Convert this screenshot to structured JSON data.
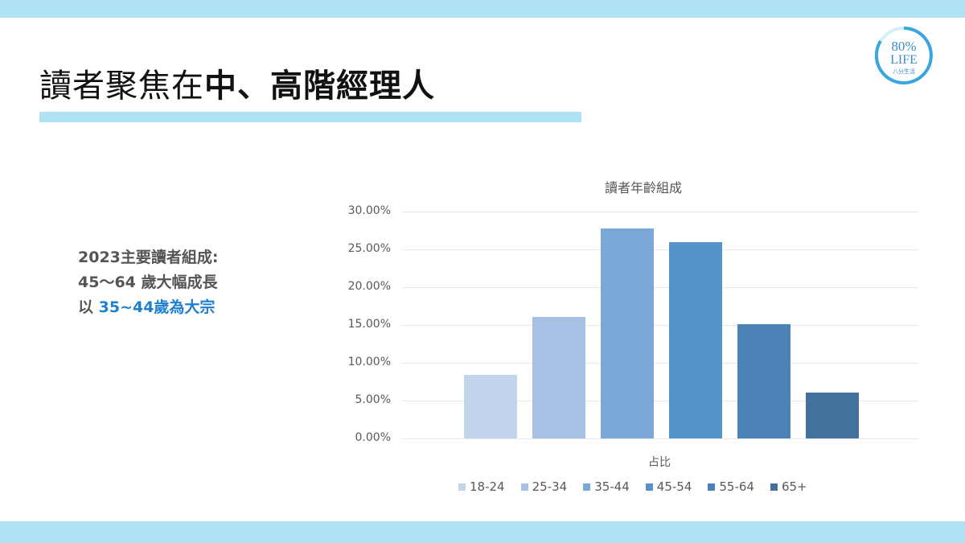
{
  "slide": {
    "title_regular": "讀者聚焦在",
    "title_bold": "中、高階經理人",
    "logo": {
      "line1": "80%",
      "line2": "LIFE",
      "line3": "八分生活",
      "ring_color": "#3aa6dd"
    },
    "summary": {
      "line1": "2023主要讀者組成:",
      "line2": "45～64 歲大幅成長",
      "line3_prefix": "以 ",
      "line3_highlight": "35~44歲為大宗",
      "highlight_color": "#1f7fcf"
    },
    "band_color": "#b1e2f3"
  },
  "chart_data": {
    "type": "bar",
    "title": "讀者年齡組成",
    "xlabel": "占比",
    "ylabel": "",
    "categories": [
      "18-24",
      "25-34",
      "35-44",
      "45-54",
      "55-64",
      "65+"
    ],
    "values": [
      0.084,
      0.161,
      0.278,
      0.26,
      0.151,
      0.061
    ],
    "colors": [
      "#c2d3ec",
      "#a7c1e5",
      "#7ba8d8",
      "#5693cb",
      "#4d82b6",
      "#44709c"
    ],
    "yticks": [
      "0.00%",
      "5.00%",
      "10.00%",
      "15.00%",
      "20.00%",
      "25.00%",
      "30.00%"
    ],
    "ylim": [
      0,
      0.3
    ],
    "grid": true,
    "legend_position": "bottom",
    "legend": [
      "18-24",
      "25-34",
      "35-44",
      "45-54",
      "55-64",
      "65+"
    ]
  }
}
